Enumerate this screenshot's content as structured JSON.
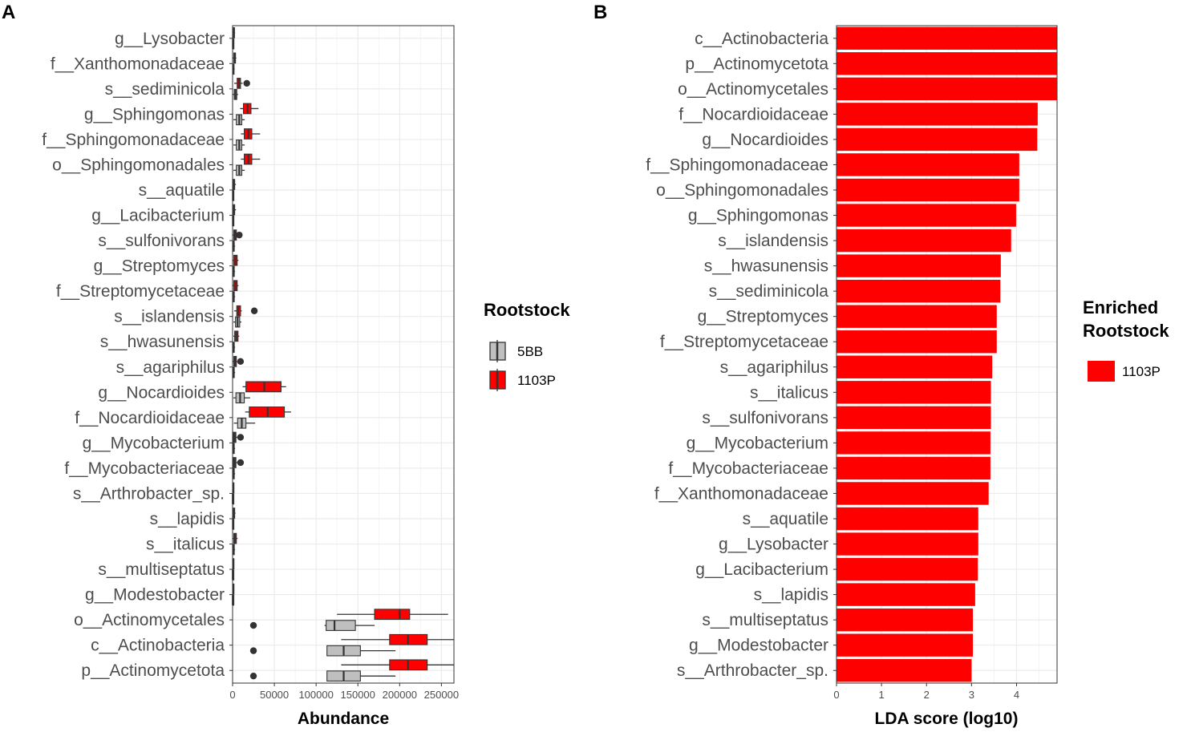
{
  "panel_a_letter": "A",
  "panel_b_letter": "B",
  "legend_a": {
    "title": "Rootstock",
    "items": [
      {
        "label": "5BB",
        "color": "#bfbfbf"
      },
      {
        "label": "1103P",
        "color": "#ff0000"
      }
    ]
  },
  "legend_b": {
    "title_line1": "Enriched",
    "title_line2": "Rootstock",
    "items": [
      {
        "label": "1103P",
        "color": "#ff0000"
      }
    ]
  },
  "chart_data": [
    {
      "panel": "A",
      "type": "boxplot",
      "orientation": "horizontal",
      "xlabel": "Abundance",
      "xlim": [
        0,
        265000
      ],
      "xticks": [
        0,
        50000,
        100000,
        150000,
        200000,
        250000
      ],
      "xtick_labels": [
        "0",
        "50000",
        "100000",
        "150000",
        "200000",
        "250000"
      ],
      "series_colors": {
        "5BB": "#bfbfbf",
        "1103P": "#ff0000"
      },
      "categories": [
        {
          "name": "g__Lysobacter",
          "5BB": {
            "box": [
              150,
              400,
              800
            ],
            "whisker": [
              0,
              1000
            ],
            "outliers": []
          },
          "1103P": {
            "box": [
              800,
              1500,
              2200
            ],
            "whisker": [
              300,
              3000
            ],
            "outliers": []
          }
        },
        {
          "name": "f__Xanthomonadaceae",
          "5BB": {
            "box": [
              300,
              800,
              1600
            ],
            "whisker": [
              0,
              2500
            ],
            "outliers": []
          },
          "1103P": {
            "box": [
              1500,
              2500,
              3500
            ],
            "whisker": [
              500,
              4500
            ],
            "outliers": []
          }
        },
        {
          "name": "s__sediminicola",
          "5BB": {
            "box": [
              2000,
              3500,
              5000
            ],
            "whisker": [
              500,
              6500
            ],
            "outliers": []
          },
          "1103P": {
            "box": [
              5500,
              7500,
              9500
            ],
            "whisker": [
              2000,
              12000
            ],
            "outliers": [
              17000
            ]
          }
        },
        {
          "name": "g__Sphingomonas",
          "5BB": {
            "box": [
              4500,
              8000,
              11000
            ],
            "whisker": [
              1000,
              14500
            ],
            "outliers": []
          },
          "1103P": {
            "box": [
              13000,
              18000,
              22000
            ],
            "whisker": [
              9000,
              31000
            ],
            "outliers": []
          }
        },
        {
          "name": "f__Sphingomonadaceae",
          "5BB": {
            "box": [
              4500,
              8000,
              11000
            ],
            "whisker": [
              1000,
              14500
            ],
            "outliers": []
          },
          "1103P": {
            "box": [
              14000,
              19000,
              23000
            ],
            "whisker": [
              10000,
              33000
            ],
            "outliers": []
          }
        },
        {
          "name": "o__Sphingomonadales",
          "5BB": {
            "box": [
              4500,
              8000,
              11000
            ],
            "whisker": [
              1000,
              14500
            ],
            "outliers": []
          },
          "1103P": {
            "box": [
              14000,
              19000,
              23000
            ],
            "whisker": [
              10000,
              33000
            ],
            "outliers": []
          }
        },
        {
          "name": "s__aquatile",
          "5BB": {
            "box": [
              100,
              400,
              1000
            ],
            "whisker": [
              0,
              1500
            ],
            "outliers": []
          },
          "1103P": {
            "box": [
              500,
              1500,
              2500
            ],
            "whisker": [
              100,
              4000
            ],
            "outliers": []
          }
        },
        {
          "name": "g__Lacibacterium",
          "5BB": {
            "box": [
              100,
              400,
              1000
            ],
            "whisker": [
              0,
              1500
            ],
            "outliers": []
          },
          "1103P": {
            "box": [
              500,
              1500,
              2500
            ],
            "whisker": [
              100,
              4000
            ],
            "outliers": []
          }
        },
        {
          "name": "s__sulfonivorans",
          "5BB": {
            "box": [
              300,
              1000,
              2000
            ],
            "whisker": [
              0,
              3000
            ],
            "outliers": []
          },
          "1103P": {
            "box": [
              1500,
              3000,
              4500
            ],
            "whisker": [
              500,
              6000
            ],
            "outliers": [
              8000
            ]
          }
        },
        {
          "name": "g__Streptomyces",
          "5BB": {
            "box": [
              300,
              1000,
              2000
            ],
            "whisker": [
              0,
              3000
            ],
            "outliers": []
          },
          "1103P": {
            "box": [
              1500,
              3500,
              5500
            ],
            "whisker": [
              500,
              7000
            ],
            "outliers": []
          }
        },
        {
          "name": "f__Streptomycetaceae",
          "5BB": {
            "box": [
              300,
              1000,
              2000
            ],
            "whisker": [
              0,
              3000
            ],
            "outliers": []
          },
          "1103P": {
            "box": [
              1500,
              3500,
              5500
            ],
            "whisker": [
              500,
              7000
            ],
            "outliers": []
          }
        },
        {
          "name": "s__islandensis",
          "5BB": {
            "box": [
              3500,
              6000,
              8500
            ],
            "whisker": [
              1000,
              10500
            ],
            "outliers": []
          },
          "1103P": {
            "box": [
              5000,
              7000,
              9500
            ],
            "whisker": [
              2000,
              11000
            ],
            "outliers": [
              26000
            ]
          }
        },
        {
          "name": "s__hwasunensis",
          "5BB": {
            "box": [
              300,
              1000,
              2000
            ],
            "whisker": [
              0,
              3000
            ],
            "outliers": []
          },
          "1103P": {
            "box": [
              2500,
              4500,
              6500
            ],
            "whisker": [
              1000,
              8000
            ],
            "outliers": []
          }
        },
        {
          "name": "s__agariphilus",
          "5BB": {
            "box": [
              300,
              1000,
              2000
            ],
            "whisker": [
              0,
              3000
            ],
            "outliers": []
          },
          "1103P": {
            "box": [
              1500,
              3000,
              4500
            ],
            "whisker": [
              500,
              5500
            ],
            "outliers": [
              9500
            ]
          }
        },
        {
          "name": "g__Nocardioides",
          "5BB": {
            "box": [
              4000,
              9000,
              14000
            ],
            "whisker": [
              1000,
              21000
            ],
            "outliers": []
          },
          "1103P": {
            "box": [
              16000,
              38000,
              58000
            ],
            "whisker": [
              12000,
              64000
            ],
            "outliers": []
          }
        },
        {
          "name": "f__Nocardioidaceae",
          "5BB": {
            "box": [
              6000,
              11000,
              16000
            ],
            "whisker": [
              1500,
              27000
            ],
            "outliers": []
          },
          "1103P": {
            "box": [
              20000,
              42000,
              62000
            ],
            "whisker": [
              15000,
              70000
            ],
            "outliers": []
          }
        },
        {
          "name": "g__Mycobacterium",
          "5BB": {
            "box": [
              300,
              1000,
              2000
            ],
            "whisker": [
              0,
              3000
            ],
            "outliers": []
          },
          "1103P": {
            "box": [
              1000,
              2500,
              4000
            ],
            "whisker": [
              500,
              5500
            ],
            "outliers": [
              9500
            ]
          }
        },
        {
          "name": "f__Mycobacteriaceae",
          "5BB": {
            "box": [
              300,
              1000,
              2000
            ],
            "whisker": [
              0,
              3000
            ],
            "outliers": []
          },
          "1103P": {
            "box": [
              1000,
              2500,
              4000
            ],
            "whisker": [
              500,
              5500
            ],
            "outliers": [
              9500
            ]
          }
        },
        {
          "name": "s__Arthrobacter_sp.",
          "5BB": {
            "box": [
              50,
              200,
              500
            ],
            "whisker": [
              0,
              800
            ],
            "outliers": []
          },
          "1103P": {
            "box": [
              200,
              600,
              1000
            ],
            "whisker": [
              50,
              1500
            ],
            "outliers": []
          }
        },
        {
          "name": "s__lapidis",
          "5BB": {
            "box": [
              100,
              400,
              900
            ],
            "whisker": [
              0,
              1500
            ],
            "outliers": []
          },
          "1103P": {
            "box": [
              500,
              1500,
              2500
            ],
            "whisker": [
              100,
              3500
            ],
            "outliers": []
          }
        },
        {
          "name": "s__italicus",
          "5BB": {
            "box": [
              300,
              1000,
              2000
            ],
            "whisker": [
              0,
              3000
            ],
            "outliers": []
          },
          "1103P": {
            "box": [
              1500,
              3000,
              4500
            ],
            "whisker": [
              500,
              6000
            ],
            "outliers": []
          }
        },
        {
          "name": "s__multiseptatus",
          "5BB": {
            "box": [
              50,
              200,
              500
            ],
            "whisker": [
              0,
              800
            ],
            "outliers": []
          },
          "1103P": {
            "box": [
              200,
              600,
              1000
            ],
            "whisker": [
              50,
              1500
            ],
            "outliers": []
          }
        },
        {
          "name": "g__Modestobacter",
          "5BB": {
            "box": [
              50,
              200,
              500
            ],
            "whisker": [
              0,
              800
            ],
            "outliers": []
          },
          "1103P": {
            "box": [
              200,
              600,
              1000
            ],
            "whisker": [
              50,
              1500
            ],
            "outliers": []
          }
        },
        {
          "name": "o__Actinomycetales",
          "5BB": {
            "box": [
              112000,
              122000,
              147000
            ],
            "whisker": [
              110000,
              170000
            ],
            "outliers": [
              25000
            ]
          },
          "1103P": {
            "box": [
              170000,
              200000,
              212000
            ],
            "whisker": [
              125000,
              258000
            ],
            "outliers": []
          }
        },
        {
          "name": "c__Actinobacteria",
          "5BB": {
            "box": [
              113000,
              133000,
              153000
            ],
            "whisker": [
              113000,
              195000
            ],
            "outliers": [
              25000
            ]
          },
          "1103P": {
            "box": [
              188000,
              210000,
              233000
            ],
            "whisker": [
              130000,
              265000
            ],
            "outliers": []
          }
        },
        {
          "name": "p__Actinomycetota",
          "5BB": {
            "box": [
              113000,
              133000,
              153000
            ],
            "whisker": [
              113000,
              195000
            ],
            "outliers": [
              25000
            ]
          },
          "1103P": {
            "box": [
              188000,
              210000,
              233000
            ],
            "whisker": [
              130000,
              265000
            ],
            "outliers": []
          }
        }
      ]
    },
    {
      "panel": "B",
      "type": "bar",
      "orientation": "horizontal",
      "xlabel": "LDA score (log10)",
      "xlim": [
        0,
        4.9
      ],
      "xticks": [
        0,
        1,
        2,
        3,
        4
      ],
      "xtick_labels": [
        "0",
        "1",
        "2",
        "3",
        "4"
      ],
      "color": "#ff0000",
      "categories": [
        "c__Actinobacteria",
        "p__Actinomycetota",
        "o__Actinomycetales",
        "f__Nocardioidaceae",
        "g__Nocardioides",
        "f__Sphingomonadaceae",
        "o__Sphingomonadales",
        "g__Sphingomonas",
        "s__islandensis",
        "s__hwasunensis",
        "s__sediminicola",
        "g__Streptomyces",
        "f__Streptomycetaceae",
        "s__agariphilus",
        "s__italicus",
        "s__sulfonivorans",
        "g__Mycobacterium",
        "f__Mycobacteriaceae",
        "f__Xanthomonadaceae",
        "s__aquatile",
        "g__Lysobacter",
        "g__Lacibacterium",
        "s__lapidis",
        "s__multiseptatus",
        "g__Modestobacter",
        "s__Arthrobacter_sp."
      ],
      "values": [
        4.9,
        4.89,
        4.89,
        4.47,
        4.46,
        4.06,
        4.06,
        3.99,
        3.88,
        3.65,
        3.64,
        3.56,
        3.56,
        3.46,
        3.43,
        3.43,
        3.42,
        3.42,
        3.38,
        3.15,
        3.15,
        3.14,
        3.08,
        3.03,
        3.03,
        3.0
      ]
    }
  ]
}
